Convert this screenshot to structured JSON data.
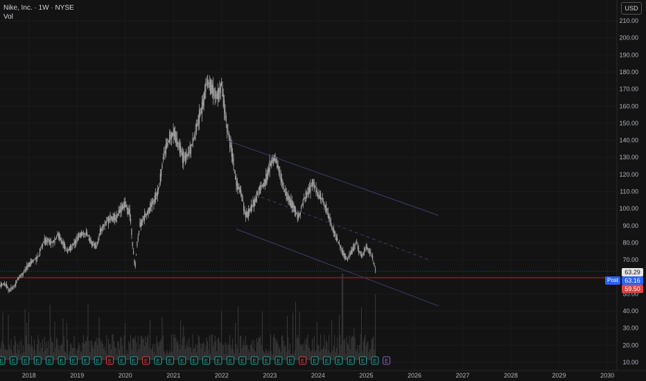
{
  "header": {
    "symbol_line": "Nike, Inc. · 1W · NYSE",
    "volume_label": "Vol",
    "currency": "USD"
  },
  "price_tags": {
    "last": "63.29",
    "post_label": "Post",
    "post": "63.16",
    "low": "59.50"
  },
  "colors": {
    "background": "#131313",
    "candle": "#a6a6a6",
    "channel": "#3b3f6e",
    "post_tag": "#2962ff",
    "low_tag": "#e04141",
    "low_line": "#c0392b",
    "earnings_teal": "#22a7a0",
    "earnings_red": "#e04141",
    "earnings_future": "#9b59d0"
  },
  "chart_data": {
    "type": "line",
    "title": "",
    "y_axis": {
      "ticks": [
        "210.00",
        "200.00",
        "190.00",
        "180.00",
        "170.00",
        "160.00",
        "150.00",
        "140.00",
        "130.00",
        "120.00",
        "110.00",
        "100.00",
        "90.00",
        "80.00",
        "70.00",
        "60.00",
        "50.00",
        "40.00",
        "30.00",
        "20.00",
        "10.00"
      ],
      "min": 10,
      "max": 210,
      "position": "right"
    },
    "x_axis": {
      "ticks": [
        "2018",
        "2019",
        "2020",
        "2021",
        "2022",
        "2023",
        "2024",
        "2025",
        "2026",
        "2027",
        "2028",
        "2029",
        "2030"
      ],
      "min": 2017.4,
      "max": 2030.2
    },
    "series": [
      {
        "x": [
          2017.4,
          2017.5,
          2017.6,
          2017.7,
          2017.8,
          2017.9,
          2018.0,
          2018.1,
          2018.2,
          2018.3,
          2018.4,
          2018.5,
          2018.6,
          2018.7,
          2018.8,
          2018.9,
          2019.0,
          2019.1,
          2019.2,
          2019.3,
          2019.4,
          2019.5,
          2019.6,
          2019.7,
          2019.8,
          2019.9,
          2020.0,
          2020.1,
          2020.15,
          2020.2,
          2020.25,
          2020.3,
          2020.4,
          2020.5,
          2020.6,
          2020.7,
          2020.8,
          2020.9,
          2021.0,
          2021.1,
          2021.2,
          2021.3,
          2021.4,
          2021.5,
          2021.6,
          2021.7,
          2021.8,
          2021.9,
          2022.0,
          2022.1,
          2022.2,
          2022.3,
          2022.4,
          2022.5,
          2022.6,
          2022.7,
          2022.8,
          2022.9,
          2023.0,
          2023.1,
          2023.2,
          2023.3,
          2023.4,
          2023.5,
          2023.6,
          2023.7,
          2023.8,
          2023.9,
          2024.0,
          2024.1,
          2024.2,
          2024.3,
          2024.4,
          2024.5,
          2024.6,
          2024.7,
          2024.8,
          2024.9,
          2025.0,
          2025.1,
          2025.2
        ],
        "y": [
          55,
          56,
          52,
          55,
          60,
          63,
          67,
          70,
          72,
          80,
          82,
          80,
          85,
          80,
          75,
          78,
          82,
          86,
          85,
          80,
          78,
          88,
          92,
          95,
          94,
          100,
          102,
          97,
          80,
          65,
          80,
          90,
          95,
          100,
          105,
          112,
          132,
          140,
          145,
          138,
          130,
          132,
          138,
          150,
          160,
          175,
          170,
          165,
          172,
          150,
          135,
          115,
          110,
          95,
          100,
          105,
          112,
          115,
          125,
          130,
          122,
          110,
          105,
          100,
          95,
          105,
          110,
          115,
          108,
          105,
          98,
          88,
          82,
          75,
          70,
          75,
          80,
          72,
          78,
          74,
          63
        ]
      }
    ]
  }
}
